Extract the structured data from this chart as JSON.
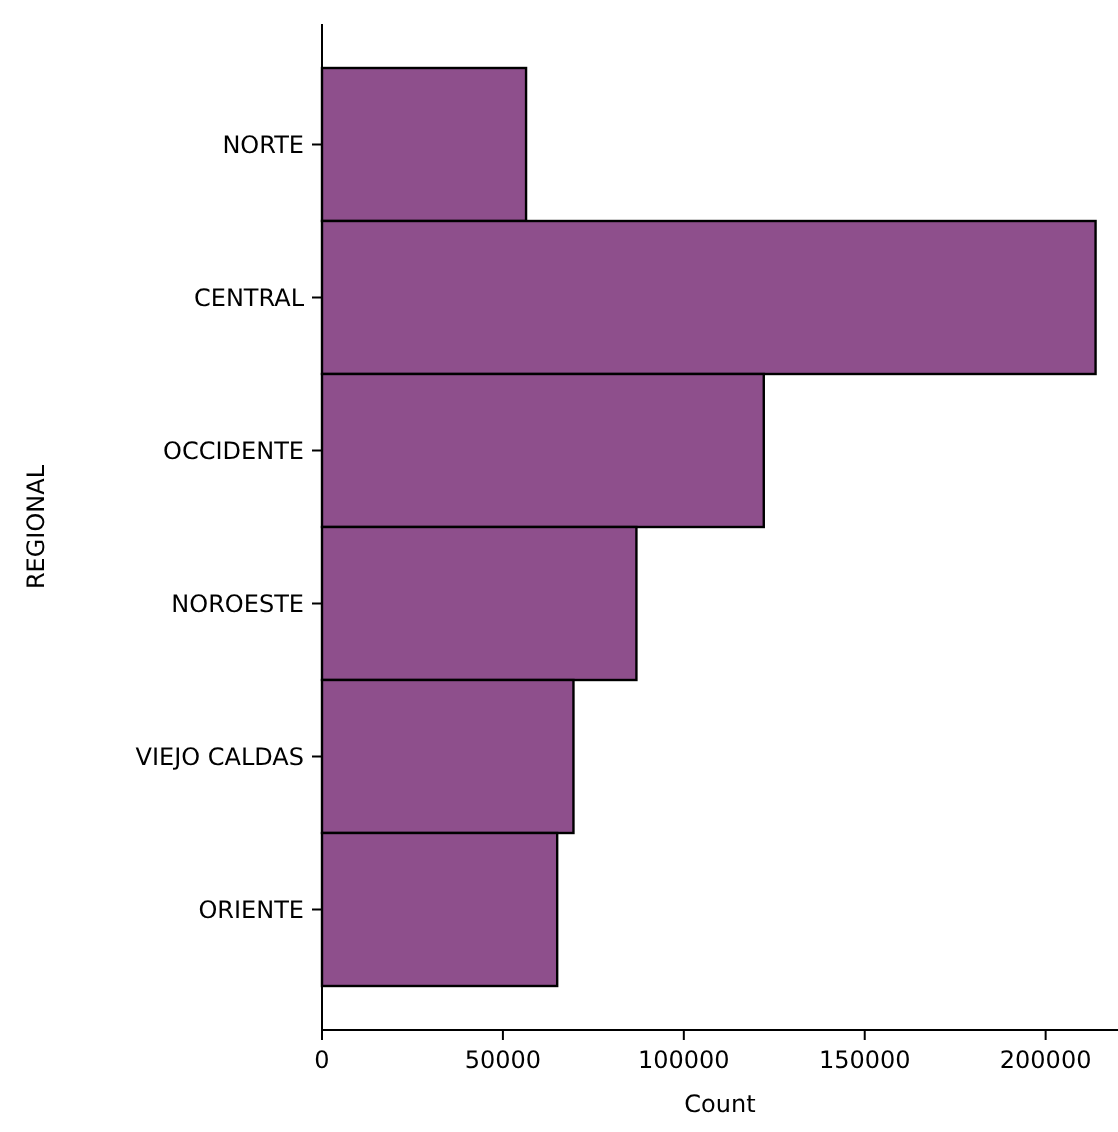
{
  "chart_data": {
    "type": "bar",
    "orientation": "horizontal",
    "xlabel": "Count",
    "ylabel": "REGIONAL",
    "categories": [
      "NORTE",
      "CENTRAL",
      "OCCIDENTE",
      "NOROESTE",
      "VIEJO CALDAS",
      "ORIENTE"
    ],
    "values": [
      56400,
      213800,
      122100,
      86900,
      69500,
      65000
    ],
    "color": "#8e4f8c",
    "xlim": [
      0,
      220000
    ],
    "xticks": [
      0,
      50000,
      100000,
      150000,
      200000
    ],
    "grid": false
  }
}
